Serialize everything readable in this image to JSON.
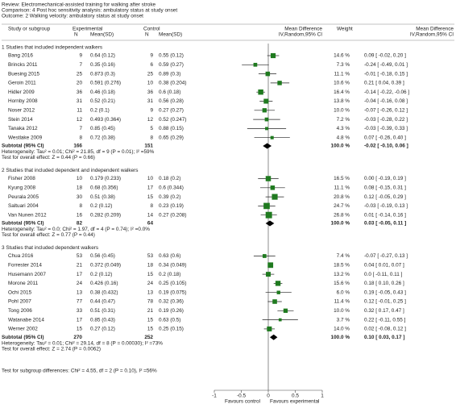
{
  "header": {
    "review": "Review:  Electromechanical-assisted training for walking after stroke",
    "comparison": "Comparison:  4 Post hoc sensitivity analysis: ambulatory status at study onset",
    "outcome": "Outcome:  2 Walking velocity: ambulatory status at study onset"
  },
  "columns": {
    "study": "Study or subgroup",
    "experimental": "Experimental",
    "e_n": "N",
    "e_mean": "Mean(SD)",
    "control": "Control",
    "c_n": "N",
    "c_mean": "Mean(SD)",
    "md": "Mean Difference",
    "md_method": "IV,Random,95% CI",
    "weight": "Weight",
    "md2": "Mean Difference",
    "md2_method": "IV,Random,95% CI"
  },
  "axis": {
    "xlim": [
      -1,
      1
    ],
    "xticks": [
      -1,
      -0.5,
      0,
      0.5,
      1
    ],
    "left_label": "Favours control",
    "right_label": "Favours experimental"
  },
  "groups": [
    {
      "title": "1 Studies that included independent walkers",
      "studies": [
        {
          "study": "Bang 2016",
          "e_n": 9,
          "e_mean": "0.64 (0.12)",
          "c_n": 9,
          "c_mean": "0.55 (0.12)",
          "weight": 14.6,
          "weight_label": "14.6 %",
          "ci_label": "0.09 [ -0.02, 0.20 ]",
          "md": 0.09,
          "lo": -0.02,
          "hi": 0.2
        },
        {
          "study": "Brincks 2011",
          "e_n": 7,
          "e_mean": "0.35 (0.16)",
          "c_n": 6,
          "c_mean": "0.59 (0.27)",
          "weight": 7.3,
          "weight_label": "7.3 %",
          "ci_label": "-0.24 [ -0.49, 0.01 ]",
          "md": -0.24,
          "lo": -0.49,
          "hi": 0.01
        },
        {
          "study": "Buesing 2015",
          "e_n": 25,
          "e_mean": "0.873 (0.3)",
          "c_n": 25,
          "c_mean": "0.89 (0.3)",
          "weight": 11.1,
          "weight_label": "11.1 %",
          "ci_label": "-0.01 [ -0.18, 0.15 ]",
          "md": -0.01,
          "lo": -0.18,
          "hi": 0.15
        },
        {
          "study": "Geroin 2011",
          "e_n": 20,
          "e_mean": "0.591 (0.276)",
          "c_n": 10,
          "c_mean": "0.38 (0.204)",
          "weight": 10.6,
          "weight_label": "10.6 %",
          "ci_label": "0.21 [ 0.04, 0.39 ]",
          "md": 0.21,
          "lo": 0.04,
          "hi": 0.39
        },
        {
          "study": "Hidler 2009",
          "e_n": 36,
          "e_mean": "0.46 (0.18)",
          "c_n": 36,
          "c_mean": "0.6 (0.18)",
          "weight": 16.4,
          "weight_label": "16.4 %",
          "ci_label": "-0.14 [ -0.22, -0.06 ]",
          "md": -0.14,
          "lo": -0.22,
          "hi": -0.06
        },
        {
          "study": "Hornby 2008",
          "e_n": 31,
          "e_mean": "0.52 (0.21)",
          "c_n": 31,
          "c_mean": "0.56 (0.28)",
          "weight": 13.8,
          "weight_label": "13.8 %",
          "ci_label": "-0.04 [ -0.16, 0.08 ]",
          "md": -0.04,
          "lo": -0.16,
          "hi": 0.08
        },
        {
          "study": "Noser 2012",
          "e_n": 11,
          "e_mean": "0.2 (0.1)",
          "c_n": 9,
          "c_mean": "0.27 (0.27)",
          "weight": 10.0,
          "weight_label": "10.0 %",
          "ci_label": "-0.07 [ -0.26, 0.12 ]",
          "md": -0.07,
          "lo": -0.26,
          "hi": 0.12
        },
        {
          "study": "Stein 2014",
          "e_n": 12,
          "e_mean": "0.493 (0.364)",
          "c_n": 12,
          "c_mean": "0.52 (0.247)",
          "weight": 7.2,
          "weight_label": "7.2 %",
          "ci_label": "-0.03 [ -0.28, 0.22 ]",
          "md": -0.03,
          "lo": -0.28,
          "hi": 0.22
        },
        {
          "study": "Tanaka 2012",
          "e_n": 7,
          "e_mean": "0.85 (0.45)",
          "c_n": 5,
          "c_mean": "0.88 (0.15)",
          "weight": 4.3,
          "weight_label": "4.3 %",
          "ci_label": "-0.03 [ -0.39, 0.33 ]",
          "md": -0.03,
          "lo": -0.39,
          "hi": 0.33
        },
        {
          "study": "Westlake 2009",
          "e_n": 8,
          "e_mean": "0.72 (0.38)",
          "c_n": 8,
          "c_mean": "0.65 (0.29)",
          "weight": 4.8,
          "weight_label": "4.8 %",
          "ci_label": "0.07 [ -0.26, 0.40 ]",
          "md": 0.07,
          "lo": -0.26,
          "hi": 0.4
        }
      ],
      "subtotal": {
        "label": "Subtotal (95% CI)",
        "e_n": 166,
        "c_n": 151,
        "weight_label": "100.0 %",
        "ci_label": "-0.02 [ -0.10, 0.06 ]",
        "md": -0.02,
        "lo": -0.1,
        "hi": 0.06
      },
      "heterogeneity": "Heterogeneity: Tau² = 0.01; Chi² = 21.85, df = 9 (P = 0.01); I² =59%",
      "overall": "Test for overall effect: Z = 0.44 (P = 0.66)"
    },
    {
      "title": "2 Studies that included dependent and independent walkers",
      "studies": [
        {
          "study": "Fisher 2008",
          "e_n": 10,
          "e_mean": "0.179 (0.233)",
          "c_n": 10,
          "c_mean": "0.18 (0.2)",
          "weight": 16.5,
          "weight_label": "16.5 %",
          "ci_label": "0.00 [ -0.19, 0.19 ]",
          "md": 0,
          "lo": -0.19,
          "hi": 0.19
        },
        {
          "study": "Kyung 2008",
          "e_n": 18,
          "e_mean": "0.68 (0.356)",
          "c_n": 17,
          "c_mean": "0.6 (0.344)",
          "weight": 11.1,
          "weight_label": "11.1 %",
          "ci_label": "0.08 [ -0.15, 0.31 ]",
          "md": 0.08,
          "lo": -0.15,
          "hi": 0.31
        },
        {
          "study": "Peurala 2005",
          "e_n": 30,
          "e_mean": "0.51 (0.38)",
          "c_n": 15,
          "c_mean": "0.39 (0.2)",
          "weight": 20.8,
          "weight_label": "20.8 %",
          "ci_label": "0.12 [ -0.05, 0.29 ]",
          "md": 0.12,
          "lo": -0.05,
          "hi": 0.29
        },
        {
          "study": "Saltuari 2004",
          "e_n": 8,
          "e_mean": "0.2 (0.12)",
          "c_n": 8,
          "c_mean": "0.23 (0.19)",
          "weight": 24.7,
          "weight_label": "24.7 %",
          "ci_label": "-0.03 [ -0.19, 0.13 ]",
          "md": -0.03,
          "lo": -0.19,
          "hi": 0.13
        },
        {
          "study": "Van Nunen 2012",
          "e_n": 16,
          "e_mean": "0.282 (0.209)",
          "c_n": 14,
          "c_mean": "0.27 (0.208)",
          "weight": 26.8,
          "weight_label": "26.8 %",
          "ci_label": "0.01 [ -0.14, 0.16 ]",
          "md": 0.01,
          "lo": -0.14,
          "hi": 0.16
        }
      ],
      "subtotal": {
        "label": "Subtotal (95% CI)",
        "e_n": 82,
        "c_n": 64,
        "weight_label": "100.0 %",
        "ci_label": "0.03 [ -0.05, 0.11 ]",
        "md": 0.03,
        "lo": -0.05,
        "hi": 0.11
      },
      "heterogeneity": "Heterogeneity: Tau² = 0.0; Chi² = 1.97, df = 4 (P = 0.74); I² =0.0%",
      "overall": "Test for overall effect: Z = 0.77 (P = 0.44)"
    },
    {
      "title": "3 Studies that included dependent walkers",
      "studies": [
        {
          "study": "Chua 2016",
          "e_n": 53,
          "e_mean": "0.56 (0.45)",
          "c_n": 53,
          "c_mean": "0.63 (0.6)",
          "weight": 7.4,
          "weight_label": "7.4 %",
          "ci_label": "-0.07 [ -0.27, 0.13 ]",
          "md": -0.07,
          "lo": -0.27,
          "hi": 0.13
        },
        {
          "study": "Forrester 2014",
          "e_n": 21,
          "e_mean": "0.372 (0.049)",
          "c_n": 18,
          "c_mean": "0.34 (0.049)",
          "weight": 18.5,
          "weight_label": "18.5 %",
          "ci_label": "0.04 [ 0.01, 0.07 ]",
          "md": 0.04,
          "lo": 0.01,
          "hi": 0.07
        },
        {
          "study": "Husemann 2007",
          "e_n": 17,
          "e_mean": "0.2 (0.12)",
          "c_n": 15,
          "c_mean": "0.2 (0.18)",
          "weight": 13.2,
          "weight_label": "13.2 %",
          "ci_label": "0.0 [ -0.11, 0.11 ]",
          "md": 0,
          "lo": -0.11,
          "hi": 0.11
        },
        {
          "study": "Morone 2011",
          "e_n": 24,
          "e_mean": "0.426 (0.16)",
          "c_n": 24,
          "c_mean": "0.25 (0.105)",
          "weight": 15.6,
          "weight_label": "15.6 %",
          "ci_label": "0.18 [ 0.10, 0.26 ]",
          "md": 0.18,
          "lo": 0.1,
          "hi": 0.26
        },
        {
          "study": "Ochi 2015",
          "e_n": 13,
          "e_mean": "0.38 (0.432)",
          "c_n": 13,
          "c_mean": "0.19 (0.075)",
          "weight": 6.0,
          "weight_label": "6.0 %",
          "ci_label": "0.19 [ -0.05, 0.43 ]",
          "md": 0.19,
          "lo": -0.05,
          "hi": 0.43
        },
        {
          "study": "Pohl 2007",
          "e_n": 77,
          "e_mean": "0.44 (0.47)",
          "c_n": 78,
          "c_mean": "0.32 (0.36)",
          "weight": 11.4,
          "weight_label": "11.4 %",
          "ci_label": "0.12 [ -0.01, 0.25 ]",
          "md": 0.12,
          "lo": -0.01,
          "hi": 0.25
        },
        {
          "study": "Tong 2006",
          "e_n": 33,
          "e_mean": "0.51 (0.31)",
          "c_n": 21,
          "c_mean": "0.19 (0.26)",
          "weight": 10.0,
          "weight_label": "10.0 %",
          "ci_label": "0.32 [ 0.17, 0.47 ]",
          "md": 0.32,
          "lo": 0.17,
          "hi": 0.47
        },
        {
          "study": "Watanabe 2014",
          "e_n": 17,
          "e_mean": "0.85 (0.43)",
          "c_n": 15,
          "c_mean": "0.63 (0.5)",
          "weight": 3.7,
          "weight_label": "3.7 %",
          "ci_label": "0.22 [ -0.11, 0.55 ]",
          "md": 0.22,
          "lo": -0.11,
          "hi": 0.55
        },
        {
          "study": "Werner 2002",
          "e_n": 15,
          "e_mean": "0.27 (0.12)",
          "c_n": 15,
          "c_mean": "0.25 (0.15)",
          "weight": 14.0,
          "weight_label": "14.0 %",
          "ci_label": "0.02 [ -0.08, 0.12 ]",
          "md": 0.02,
          "lo": -0.08,
          "hi": 0.12
        }
      ],
      "subtotal": {
        "label": "Subtotal (95% CI)",
        "e_n": 270,
        "c_n": 252,
        "weight_label": "100.0 %",
        "ci_label": "0.10 [ 0.03, 0.17 ]",
        "md": 0.1,
        "lo": 0.03,
        "hi": 0.17
      },
      "heterogeneity": "Heterogeneity: Tau² = 0.01; Chi² = 29.14, df = 8 (P = 0.00030); I² =73%",
      "overall": "Test for overall effect: Z = 2.74 (P = 0.0062)"
    }
  ],
  "footer": "Test for subgroup differences: Chi² = 4.55, df = 2 (P = 0.10), I² =56%"
}
